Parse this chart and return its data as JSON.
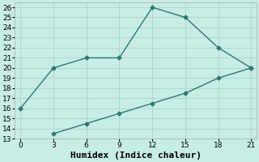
{
  "line1_x": [
    0,
    3,
    6,
    9,
    12,
    15,
    18,
    21
  ],
  "line1_y": [
    16,
    20,
    21,
    21,
    26,
    25,
    22,
    20
  ],
  "line2_x": [
    3,
    6,
    9,
    12,
    15,
    18,
    21
  ],
  "line2_y": [
    13.5,
    14.5,
    15.5,
    16.5,
    17.5,
    19,
    20
  ],
  "line_color": "#2a7a70",
  "bg_color": "#c8ece6",
  "grid_color": "#b0d8d0",
  "xlabel": "Humidex (Indice chaleur)",
  "xlim": [
    -0.5,
    21.5
  ],
  "ylim": [
    13,
    26.5
  ],
  "xticks": [
    0,
    3,
    6,
    9,
    12,
    15,
    18,
    21
  ],
  "yticks": [
    13,
    14,
    15,
    16,
    17,
    18,
    19,
    20,
    21,
    22,
    23,
    24,
    25,
    26
  ],
  "marker": "D",
  "marker_size": 2.5,
  "linewidth": 1.0,
  "xlabel_fontsize": 8,
  "tick_fontsize": 6.5
}
